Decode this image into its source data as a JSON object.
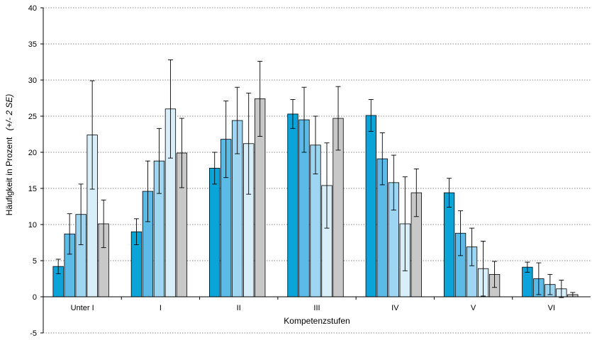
{
  "chart_data": {
    "type": "bar",
    "xlabel": "Kompetenzstufen",
    "ylabel_main": "Häufigkeit in Prozent",
    "ylabel_note": "(+/- 2 SE)",
    "ylim": [
      -5,
      40
    ],
    "yticks": [
      -5,
      0,
      5,
      10,
      15,
      20,
      25,
      30,
      35,
      40
    ],
    "grid": "horizontal-dotted",
    "error_bars": true,
    "categories": [
      "Unter I",
      "I",
      "II",
      "III",
      "IV",
      "V",
      "VI"
    ],
    "series": [
      {
        "color": "#0aa4d8",
        "values": [
          4.2,
          9.0,
          17.8,
          25.3,
          25.1,
          14.4,
          4.1
        ],
        "err": [
          1.0,
          1.8,
          2.2,
          2.0,
          2.2,
          2.0,
          0.7
        ]
      },
      {
        "color": "#5bbbe6",
        "values": [
          8.7,
          14.6,
          21.8,
          24.5,
          19.1,
          8.8,
          2.5
        ],
        "err": [
          2.8,
          4.2,
          5.3,
          4.5,
          3.6,
          3.1,
          2.2
        ]
      },
      {
        "color": "#9ed5f0",
        "values": [
          11.4,
          18.8,
          24.4,
          21.0,
          15.8,
          6.9,
          1.7
        ],
        "err": [
          4.2,
          4.5,
          4.6,
          4.0,
          3.8,
          2.6,
          1.4
        ]
      },
      {
        "color": "#d8eef9",
        "values": [
          22.4,
          26.0,
          21.2,
          15.4,
          10.1,
          3.9,
          1.1
        ],
        "err": [
          7.5,
          6.8,
          7.0,
          5.9,
          6.5,
          3.8,
          1.2
        ]
      },
      {
        "color": "#c8c8c8",
        "values": [
          10.1,
          19.9,
          27.4,
          24.7,
          14.4,
          3.1,
          0.3
        ],
        "err": [
          3.3,
          4.8,
          5.2,
          4.4,
          3.3,
          1.8,
          0.3
        ]
      }
    ]
  }
}
